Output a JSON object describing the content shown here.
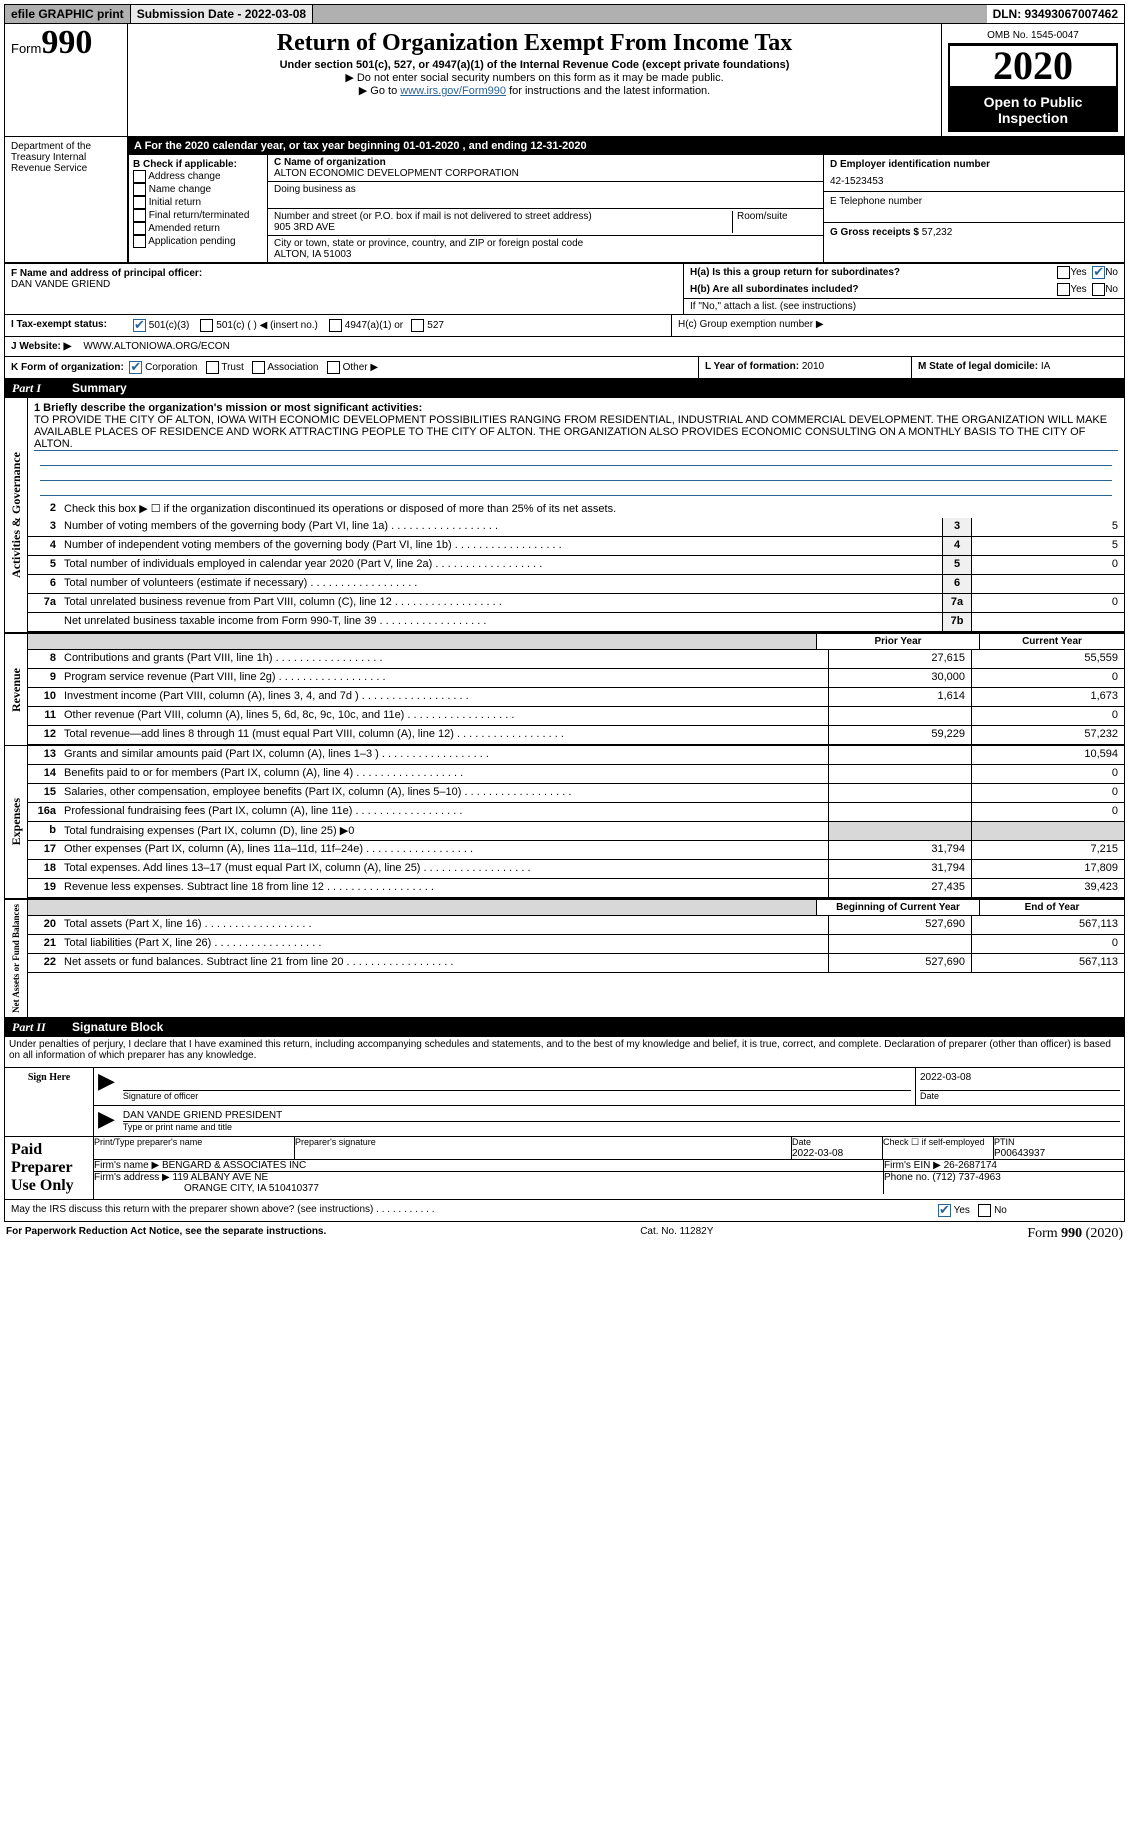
{
  "topbar": {
    "efile": "efile GRAPHIC print",
    "subdate_label": "Submission Date - 2022-03-08",
    "dln": "DLN: 93493067007462"
  },
  "header": {
    "form_word": "Form",
    "form_num": "990",
    "title": "Return of Organization Exempt From Income Tax",
    "sub1": "Under section 501(c), 527, or 4947(a)(1) of the Internal Revenue Code (except private foundations)",
    "sub2": "▶ Do not enter social security numbers on this form as it may be made public.",
    "sub3_pre": "▶ Go to ",
    "sub3_link": "www.irs.gov/Form990",
    "sub3_post": " for instructions and the latest information.",
    "omb": "OMB No. 1545-0047",
    "year": "2020",
    "otp": "Open to Public Inspection",
    "dept": "Department of the Treasury Internal Revenue Service"
  },
  "abar": "A For the 2020 calendar year, or tax year beginning 01-01-2020    , and ending 12-31-2020",
  "B": {
    "label": "B Check if applicable:",
    "items": [
      "Address change",
      "Name change",
      "Initial return",
      "Final return/terminated",
      "Amended return",
      "Application pending"
    ]
  },
  "C": {
    "name_label": "C Name of organization",
    "name": "ALTON ECONOMIC DEVELOPMENT CORPORATION",
    "dba_label": "Doing business as",
    "addr_label": "Number and street (or P.O. box if mail is not delivered to street address)",
    "room_label": "Room/suite",
    "addr": "905 3RD AVE",
    "city_label": "City or town, state or province, country, and ZIP or foreign postal code",
    "city": "ALTON, IA  51003"
  },
  "D": {
    "label": "D Employer identification number",
    "value": "42-1523453"
  },
  "E": {
    "label": "E Telephone number",
    "value": ""
  },
  "G": {
    "label": "G Gross receipts $",
    "value": "57,232"
  },
  "F": {
    "label": "F  Name and address of principal officer:",
    "value": "DAN VANDE GRIEND"
  },
  "H": {
    "a_label": "H(a)  Is this a group return for subordinates?",
    "b_label": "H(b)  Are all subordinates included?",
    "b_note": "If \"No,\" attach a list. (see instructions)",
    "c_label": "H(c)  Group exemption number ▶",
    "yes": "Yes",
    "no": "No"
  },
  "I": {
    "label": "I  Tax-exempt status:",
    "o1": "501(c)(3)",
    "o2": "501(c) (  ) ◀ (insert no.)",
    "o3": "4947(a)(1) or",
    "o4": "527"
  },
  "J": {
    "label": "J  Website: ▶",
    "value": "WWW.ALTONIOWA.ORG/ECON"
  },
  "K": {
    "label": "K Form of organization:",
    "o1": "Corporation",
    "o2": "Trust",
    "o3": "Association",
    "o4": "Other ▶"
  },
  "L": {
    "label": "L Year of formation:",
    "value": "2010"
  },
  "M": {
    "label": "M State of legal domicile:",
    "value": "IA"
  },
  "part1_label": "Part I",
  "part1_title": "Summary",
  "mission_label": "1  Briefly describe the organization's mission or most significant activities:",
  "mission_text": "TO PROVIDE THE CITY OF ALTON, IOWA WITH ECONOMIC DEVELOPMENT POSSIBILITIES RANGING FROM RESIDENTIAL, INDUSTRIAL AND COMMERCIAL DEVELOPMENT. THE ORGANIZATION WILL MAKE AVAILABLE PLACES OF RESIDENCE AND WORK ATTRACTING PEOPLE TO THE CITY OF ALTON. THE ORGANIZATION ALSO PROVIDES ECONOMIC CONSULTING ON A MONTHLY BASIS TO THE CITY OF ALTON.",
  "side_labels": {
    "ag": "Activities & Governance",
    "rev": "Revenue",
    "exp": "Expenses",
    "na": "Net Assets or Fund Balances"
  },
  "gov_lines": [
    {
      "n": "2",
      "t": "Check this box ▶ ☐ if the organization discontinued its operations or disposed of more than 25% of its net assets."
    },
    {
      "n": "3",
      "t": "Number of voting members of the governing body (Part VI, line 1a)",
      "box": "3",
      "v": "5"
    },
    {
      "n": "4",
      "t": "Number of independent voting members of the governing body (Part VI, line 1b)",
      "box": "4",
      "v": "5"
    },
    {
      "n": "5",
      "t": "Total number of individuals employed in calendar year 2020 (Part V, line 2a)",
      "box": "5",
      "v": "0"
    },
    {
      "n": "6",
      "t": "Total number of volunteers (estimate if necessary)",
      "box": "6",
      "v": ""
    },
    {
      "n": "7a",
      "t": "Total unrelated business revenue from Part VIII, column (C), line 12",
      "box": "7a",
      "v": "0"
    },
    {
      "n": "",
      "t": "Net unrelated business taxable income from Form 990-T, line 39",
      "box": "7b",
      "v": ""
    }
  ],
  "col_hdrs": {
    "prior": "Prior Year",
    "current": "Current Year"
  },
  "rev_lines": [
    {
      "n": "8",
      "t": "Contributions and grants (Part VIII, line 1h)",
      "p": "27,615",
      "c": "55,559"
    },
    {
      "n": "9",
      "t": "Program service revenue (Part VIII, line 2g)",
      "p": "30,000",
      "c": "0"
    },
    {
      "n": "10",
      "t": "Investment income (Part VIII, column (A), lines 3, 4, and 7d )",
      "p": "1,614",
      "c": "1,673"
    },
    {
      "n": "11",
      "t": "Other revenue (Part VIII, column (A), lines 5, 6d, 8c, 9c, 10c, and 11e)",
      "p": "",
      "c": "0"
    },
    {
      "n": "12",
      "t": "Total revenue—add lines 8 through 11 (must equal Part VIII, column (A), line 12)",
      "p": "59,229",
      "c": "57,232"
    }
  ],
  "exp_lines": [
    {
      "n": "13",
      "t": "Grants and similar amounts paid (Part IX, column (A), lines 1–3 )",
      "p": "",
      "c": "10,594"
    },
    {
      "n": "14",
      "t": "Benefits paid to or for members (Part IX, column (A), line 4)",
      "p": "",
      "c": "0"
    },
    {
      "n": "15",
      "t": "Salaries, other compensation, employee benefits (Part IX, column (A), lines 5–10)",
      "p": "",
      "c": "0"
    },
    {
      "n": "16a",
      "t": "Professional fundraising fees (Part IX, column (A), line 11e)",
      "p": "",
      "c": "0"
    },
    {
      "n": "b",
      "t": "Total fundraising expenses (Part IX, column (D), line 25) ▶0",
      "p": "GRAY",
      "c": "GRAY"
    },
    {
      "n": "17",
      "t": "Other expenses (Part IX, column (A), lines 11a–11d, 11f–24e)",
      "p": "31,794",
      "c": "7,215"
    },
    {
      "n": "18",
      "t": "Total expenses. Add lines 13–17 (must equal Part IX, column (A), line 25)",
      "p": "31,794",
      "c": "17,809"
    },
    {
      "n": "19",
      "t": "Revenue less expenses. Subtract line 18 from line 12",
      "p": "27,435",
      "c": "39,423"
    }
  ],
  "na_hdrs": {
    "beg": "Beginning of Current Year",
    "end": "End of Year"
  },
  "na_lines": [
    {
      "n": "20",
      "t": "Total assets (Part X, line 16)",
      "p": "527,690",
      "c": "567,113"
    },
    {
      "n": "21",
      "t": "Total liabilities (Part X, line 26)",
      "p": "",
      "c": "0"
    },
    {
      "n": "22",
      "t": "Net assets or fund balances. Subtract line 21 from line 20",
      "p": "527,690",
      "c": "567,113"
    }
  ],
  "part2_label": "Part II",
  "part2_title": "Signature Block",
  "penalties": "Under penalties of perjury, I declare that I have examined this return, including accompanying schedules and statements, and to the best of my knowledge and belief, it is true, correct, and complete. Declaration of preparer (other than officer) is based on all information of which preparer has any knowledge.",
  "sign": {
    "here": "Sign Here",
    "sig_of_officer": "Signature of officer",
    "date": "Date",
    "date_val": "2022-03-08",
    "name_title": "DAN VANDE GRIEND  PRESIDENT",
    "type_or_print": "Type or print name and title"
  },
  "paid": {
    "label": "Paid Preparer Use Only",
    "print_name": "Print/Type preparer's name",
    "sig": "Preparer's signature",
    "date_label": "Date",
    "date_val": "2022-03-08",
    "check_label": "Check ☐ if self-employed",
    "ptin_label": "PTIN",
    "ptin": "P00643937",
    "firm_name_label": "Firm's name    ▶",
    "firm_name": "BENGARD & ASSOCIATES INC",
    "firm_ein_label": "Firm's EIN ▶",
    "firm_ein": "26-2687174",
    "firm_addr_label": "Firm's address ▶",
    "firm_addr": "119 ALBANY AVE NE",
    "firm_city": "ORANGE CITY, IA  510410377",
    "phone_label": "Phone no.",
    "phone": "(712) 737-4963"
  },
  "irs_discuss": "May the IRS discuss this return with the preparer shown above? (see instructions)",
  "footer": {
    "pra": "For Paperwork Reduction Act Notice, see the separate instructions.",
    "cat": "Cat. No. 11282Y",
    "form": "Form 990 (2020)"
  }
}
